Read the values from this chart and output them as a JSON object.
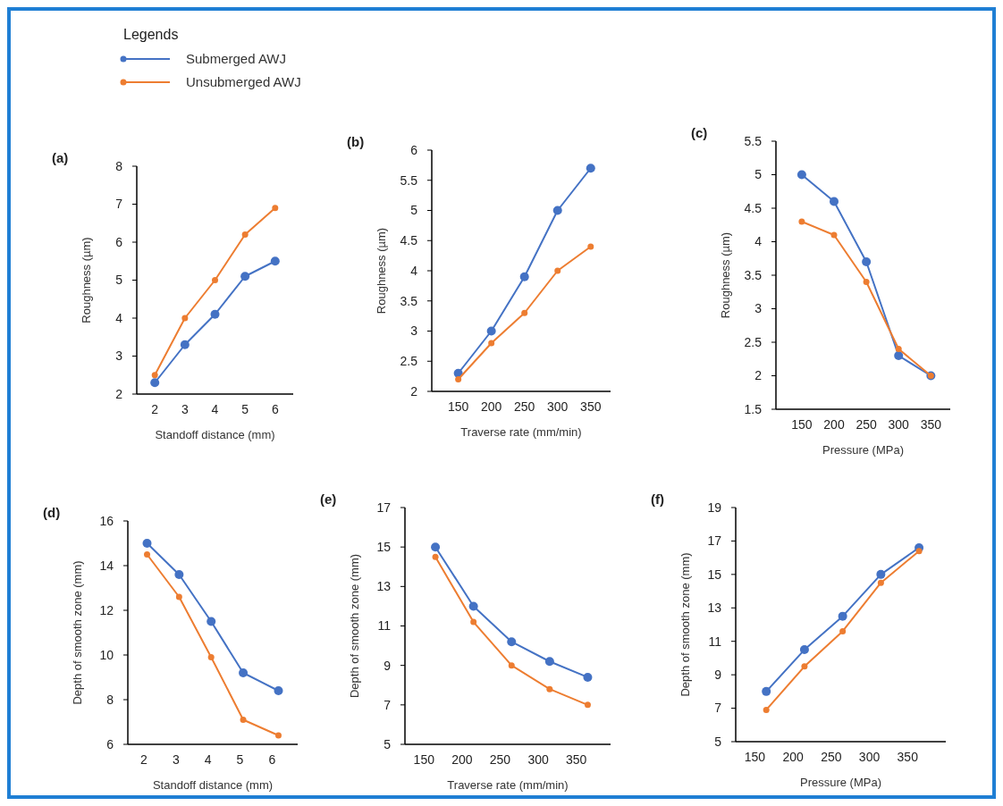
{
  "chart_data": [
    {
      "type": "line",
      "title": "(a)",
      "xlabel": "Standoff distance (mm)",
      "ylabel": "Roughness (µm)",
      "x": [
        2,
        3,
        4,
        5,
        6
      ],
      "xlim": [
        1.4,
        6.6
      ],
      "xticks": [
        2,
        3,
        4,
        5,
        6
      ],
      "ylim": [
        2,
        8
      ],
      "yticks": [
        2,
        3,
        4,
        5,
        6,
        7,
        8
      ],
      "marker": "circle",
      "legend": "top left",
      "legend_title": "Legends",
      "series": [
        {
          "name": "Submerged AWJ",
          "color": "#4472c4",
          "values": [
            2.3,
            3.3,
            4.1,
            5.1,
            5.5
          ]
        },
        {
          "name": "Unsubmerged AWJ",
          "color": "#ed7d31",
          "values": [
            2.5,
            4.0,
            5.0,
            6.2,
            6.9
          ]
        }
      ]
    },
    {
      "type": "line",
      "title": "(b)",
      "xlabel": "Traverse rate (mm/min)",
      "ylabel": "Roughness (µm)",
      "x": [
        150,
        200,
        250,
        300,
        350
      ],
      "xlim": [
        110,
        380
      ],
      "xticks": [
        150,
        200,
        250,
        300,
        350
      ],
      "ylim": [
        2,
        6
      ],
      "yticks": [
        2,
        2.5,
        3,
        3.5,
        4,
        4.5,
        5,
        5.5,
        6
      ],
      "marker": "circle",
      "series": [
        {
          "color": "#4472c4",
          "values": [
            2.3,
            3.0,
            3.9,
            5.0,
            5.7
          ]
        },
        {
          "color": "#ed7d31",
          "values": [
            2.2,
            2.8,
            3.3,
            4.0,
            4.4
          ]
        }
      ]
    },
    {
      "type": "line",
      "title": "(c)",
      "xlabel": "Pressure (MPa)",
      "ylabel": "Roughness (µm)",
      "x": [
        150,
        200,
        250,
        300,
        350
      ],
      "xlim": [
        110,
        380
      ],
      "xticks": [
        150,
        200,
        250,
        300,
        350
      ],
      "ylim": [
        1.5,
        5.5
      ],
      "yticks": [
        1.5,
        2,
        2.5,
        3,
        3.5,
        4,
        4.5,
        5,
        5.5
      ],
      "marker": "circle",
      "series": [
        {
          "color": "#4472c4",
          "values": [
            5.0,
            4.6,
            3.7,
            2.3,
            2.0
          ]
        },
        {
          "color": "#ed7d31",
          "values": [
            4.3,
            4.1,
            3.4,
            2.4,
            2.0
          ]
        }
      ]
    },
    {
      "type": "line",
      "title": "(d)",
      "xlabel": "Standoff distance (mm)",
      "ylabel": "Depth of smooth zone (mm)",
      "x": [
        2.1,
        3.1,
        4.1,
        5.1,
        6.2
      ],
      "xlim": [
        1.5,
        6.8
      ],
      "xticks": [
        2,
        3,
        4,
        5,
        6
      ],
      "ylim": [
        6,
        16
      ],
      "yticks": [
        6,
        8,
        10,
        12,
        14,
        16
      ],
      "marker": "circle",
      "series": [
        {
          "color": "#4472c4",
          "values": [
            15,
            13.6,
            11.5,
            9.2,
            8.4
          ]
        },
        {
          "color": "#ed7d31",
          "values": [
            14.5,
            12.6,
            9.9,
            7.1,
            6.4
          ]
        }
      ]
    },
    {
      "type": "line",
      "title": "(e)",
      "xlabel": "Traverse rate (mm/min)",
      "ylabel": "Depth of smooth zone (mm)",
      "x": [
        165,
        215,
        265,
        315,
        365
      ],
      "xlim": [
        125,
        395
      ],
      "xticks": [
        150,
        200,
        250,
        300,
        350
      ],
      "ylim": [
        5,
        17
      ],
      "yticks": [
        5,
        7,
        9,
        11,
        13,
        15,
        17
      ],
      "marker": "circle",
      "series": [
        {
          "color": "#4472c4",
          "values": [
            15,
            12,
            10.2,
            9.2,
            8.4
          ]
        },
        {
          "color": "#ed7d31",
          "values": [
            14.5,
            11.2,
            9.0,
            7.8,
            7.0
          ]
        }
      ]
    },
    {
      "type": "line",
      "title": "(f)",
      "xlabel": "Pressure (MPa)",
      "ylabel": "Depth of smooth zone (mm)",
      "x": [
        165,
        215,
        265,
        315,
        365
      ],
      "xlim": [
        125,
        400
      ],
      "xticks": [
        150,
        200,
        250,
        300,
        350
      ],
      "ylim": [
        5,
        19
      ],
      "yticks": [
        5,
        7,
        9,
        11,
        13,
        15,
        17,
        19
      ],
      "marker": "circle",
      "series": [
        {
          "color": "#4472c4",
          "values": [
            8.0,
            10.5,
            12.5,
            15.0,
            16.6
          ]
        },
        {
          "color": "#ed7d31",
          "values": [
            6.9,
            9.5,
            11.6,
            14.5,
            16.4
          ]
        }
      ]
    }
  ]
}
